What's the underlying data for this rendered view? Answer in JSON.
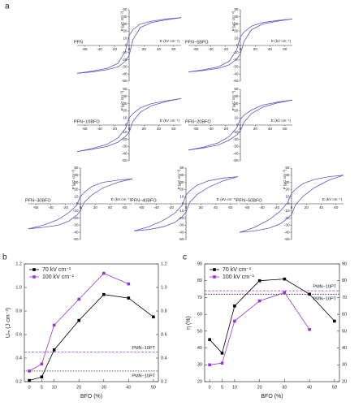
{
  "chart_data": [
    {
      "type": "loops",
      "label": "a",
      "xlabel": "E (kV cm⁻¹)",
      "ylabel": "P (μC cm⁻²)",
      "color": "#5a5ac8",
      "xlim": [
        -70,
        70
      ],
      "xticks": [
        -60,
        -40,
        -20,
        0,
        20,
        40,
        60
      ],
      "ylim": [
        -50,
        50
      ],
      "yticks": [
        -50,
        -40,
        -30,
        -20,
        -10,
        0,
        10,
        20,
        30,
        40,
        50
      ],
      "x": [
        -70,
        -50,
        -30,
        -15,
        -5,
        0,
        5,
        15,
        30,
        50,
        70
      ],
      "loops": [
        {
          "name": "PFN",
          "upper": [
            -39,
            -36,
            -32,
            -25,
            -8,
            14,
            22,
            30,
            34,
            37,
            39
          ],
          "lower": [
            -39,
            -37,
            -34,
            -30,
            -22,
            -14,
            8,
            25,
            32,
            36,
            39
          ]
        },
        {
          "name": "PFN−5BFO",
          "upper": [
            -37,
            -34,
            -30,
            -22,
            -6,
            12,
            19,
            27,
            32,
            35,
            37
          ],
          "lower": [
            -37,
            -35,
            -32,
            -27,
            -19,
            -12,
            6,
            22,
            30,
            34,
            37
          ]
        },
        {
          "name": "PFN−10BFO",
          "upper": [
            -37,
            -33,
            -27,
            -18,
            -5,
            10,
            16,
            24,
            30,
            34,
            37
          ],
          "lower": [
            -37,
            -34,
            -30,
            -24,
            -16,
            -10,
            5,
            18,
            27,
            33,
            37
          ]
        },
        {
          "name": "PFN−20BFO",
          "upper": [
            -35,
            -31,
            -25,
            -16,
            -4,
            8,
            14,
            21,
            28,
            32,
            35
          ],
          "lower": [
            -35,
            -32,
            -28,
            -21,
            -14,
            -8,
            4,
            16,
            25,
            31,
            35
          ]
        },
        {
          "name": "PFN−30BFO",
          "upper": [
            -35,
            -30,
            -22,
            -12,
            -2,
            10,
            16,
            24,
            30,
            33,
            35
          ],
          "lower": [
            -35,
            -33,
            -30,
            -24,
            -16,
            -10,
            2,
            12,
            22,
            30,
            35
          ]
        },
        {
          "name": "PFN−40BFO",
          "upper": [
            -38,
            -32,
            -23,
            -13,
            -2,
            12,
            18,
            26,
            32,
            36,
            38
          ],
          "lower": [
            -38,
            -36,
            -32,
            -26,
            -18,
            -12,
            2,
            13,
            23,
            32,
            38
          ]
        },
        {
          "name": "PFN−50BFO",
          "upper": [
            -40,
            -33,
            -22,
            -10,
            2,
            15,
            20,
            28,
            34,
            38,
            40
          ],
          "lower": [
            -40,
            -38,
            -34,
            -28,
            -20,
            -15,
            -2,
            10,
            22,
            33,
            40
          ]
        }
      ]
    },
    {
      "type": "line",
      "label": "b",
      "xlabel": "BFO (%)",
      "ylabel": "Uₘ (J·cm⁻³)",
      "legend": "upper left",
      "x": [
        0,
        5,
        10,
        20,
        30,
        40,
        50
      ],
      "xlim": [
        -2,
        52
      ],
      "xticks": [
        0,
        5,
        10,
        20,
        30,
        40,
        50
      ],
      "ylim": [
        0.2,
        1.2
      ],
      "yticks": [
        0.2,
        0.4,
        0.6,
        0.8,
        {
          "value": 1,
          "label": "1.0"
        },
        1.2
      ],
      "y2lim": [
        0.2,
        1.2
      ],
      "y2ticks": [
        0.2,
        0.4,
        0.6,
        0.8,
        {
          "value": 1,
          "label": "1.0"
        },
        1.2
      ],
      "series": [
        {
          "name": "70 kV cm⁻¹",
          "color": "#000000",
          "values": [
            0.21,
            0.24,
            0.47,
            0.72,
            0.94,
            0.91,
            0.75
          ]
        },
        {
          "name": "100 kV cm⁻¹",
          "color": "#9933dd",
          "values": [
            0.29,
            0.35,
            0.68,
            0.9,
            1.12,
            1.03,
            null
          ]
        }
      ],
      "ref_lines": [
        {
          "value": 0.45,
          "color": "#9933dd",
          "style": "dashed",
          "label": "PMN−10PT"
        },
        {
          "value": 0.29,
          "color": "#000000",
          "style": "dotted",
          "label": "PMN−10PT"
        }
      ]
    },
    {
      "type": "line",
      "label": "c",
      "xlabel": "BFO (%)",
      "ylabel": "η (%)",
      "legend": "upper left",
      "x": [
        0,
        5,
        10,
        20,
        30,
        40,
        50
      ],
      "xlim": [
        -2,
        52
      ],
      "xticks": [
        0,
        5,
        10,
        20,
        30,
        40,
        50
      ],
      "ylim": [
        20,
        90
      ],
      "yticks": [
        20,
        30,
        40,
        50,
        60,
        70,
        80,
        90
      ],
      "y2lim": [
        20,
        90
      ],
      "y2ticks": [
        20,
        30,
        40,
        50,
        60,
        70,
        80,
        90
      ],
      "series": [
        {
          "name": "70 kV cm⁻¹",
          "color": "#000000",
          "values": [
            45,
            37,
            65,
            80,
            81,
            72,
            56
          ]
        },
        {
          "name": "100 kV cm⁻¹",
          "color": "#9933dd",
          "values": [
            30,
            31,
            56,
            68,
            73,
            51,
            null
          ]
        }
      ],
      "ref_lines": [
        {
          "value": 74,
          "color": "#9933dd",
          "style": "dashed",
          "label": "PMN−10PT"
        },
        {
          "value": 72,
          "color": "#000000",
          "style": "dotted",
          "label": "PMN−10PT"
        }
      ]
    }
  ]
}
